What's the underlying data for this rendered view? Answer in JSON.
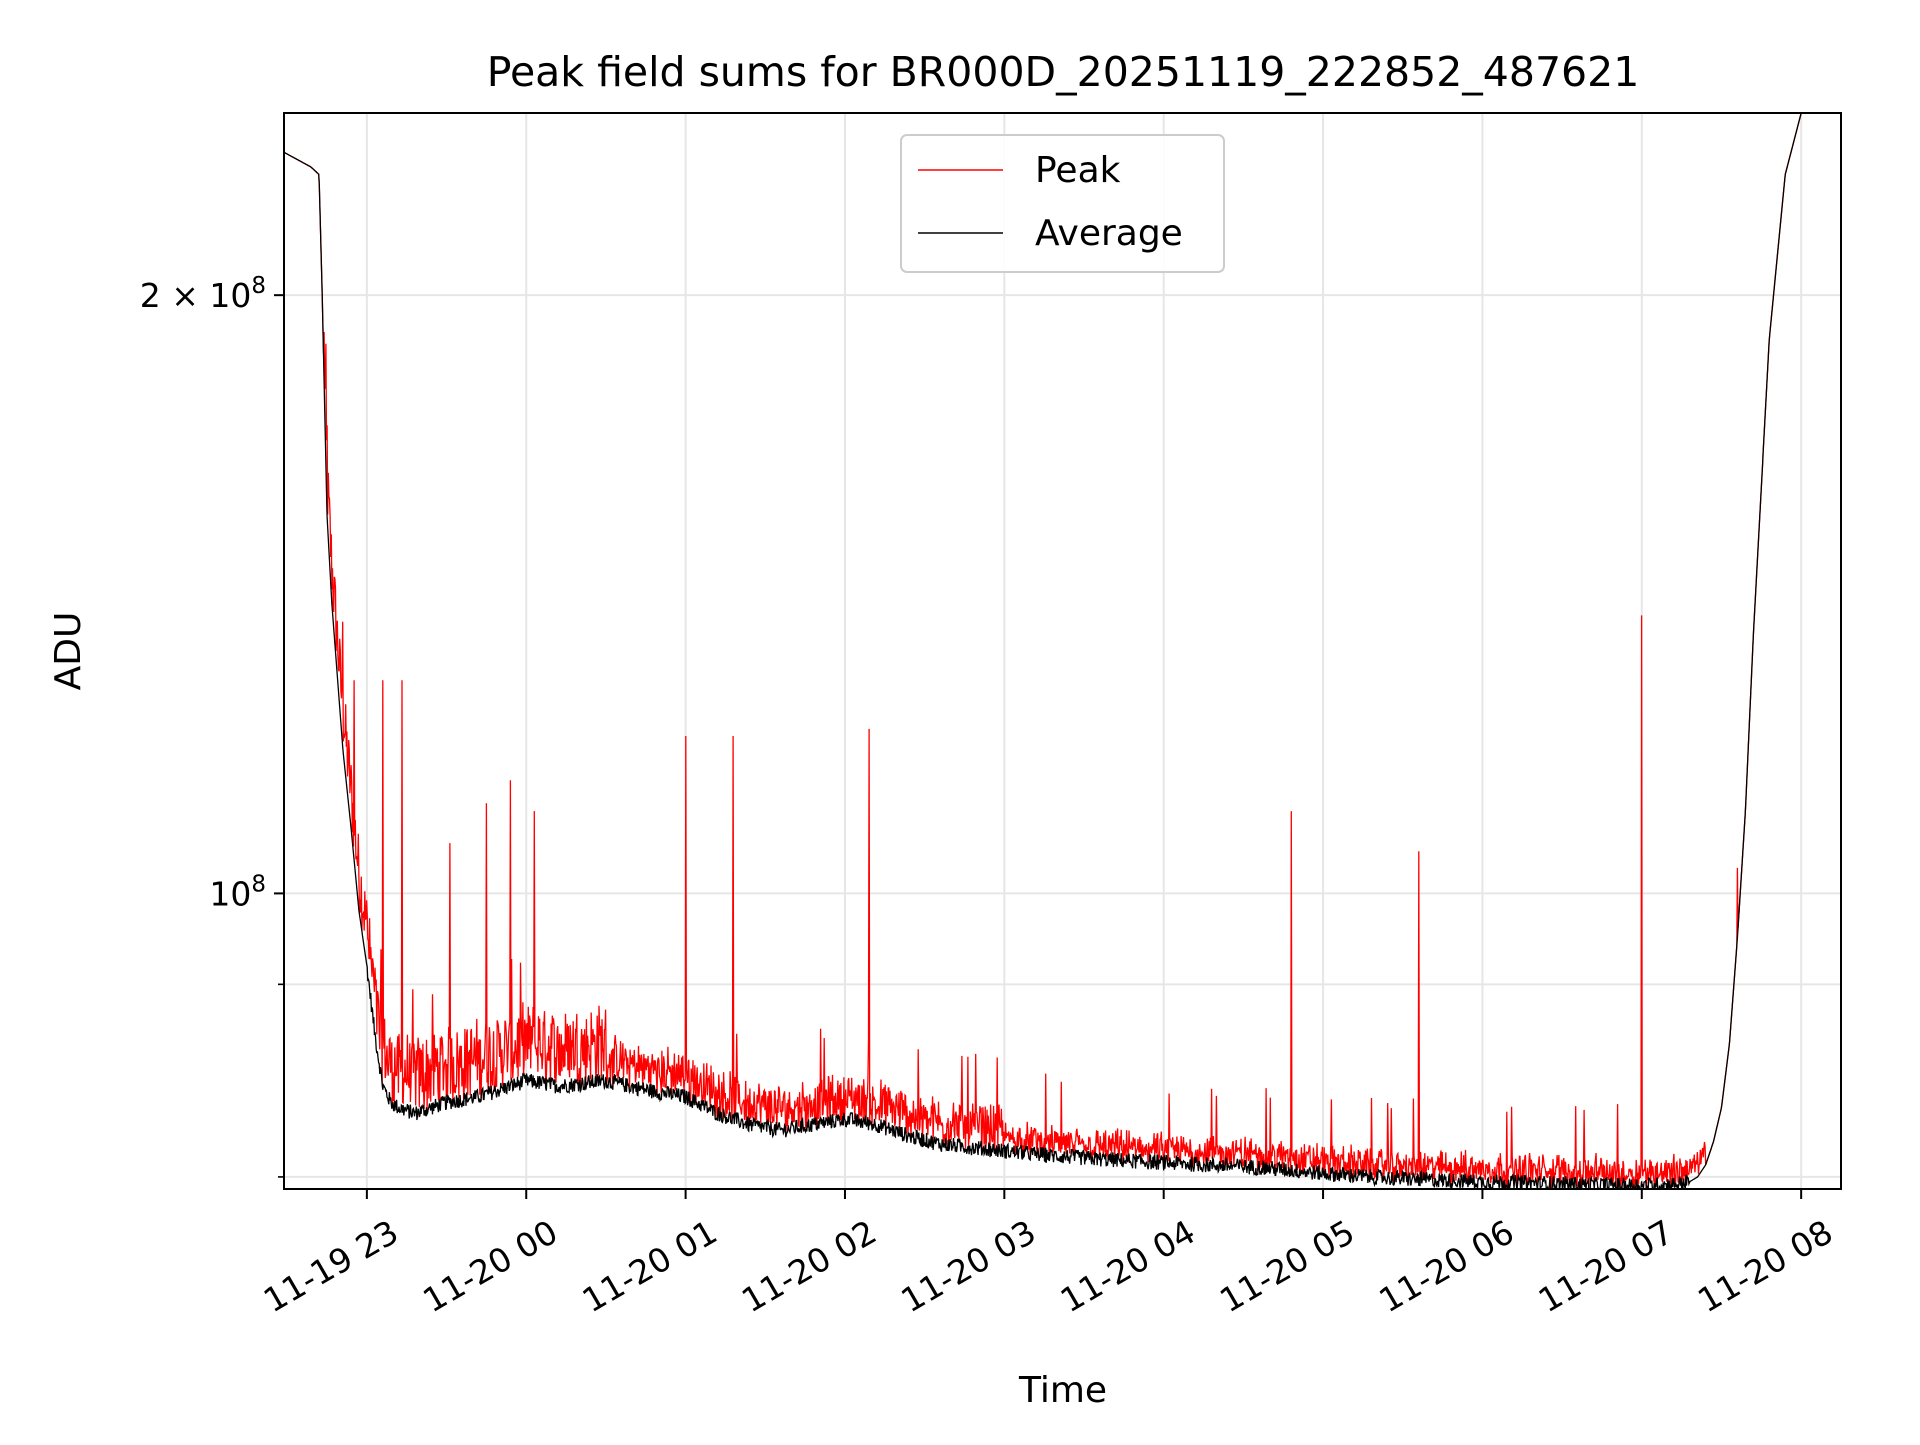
{
  "chart_data": {
    "type": "line",
    "title": "Peak field sums for BR000D_20251119_222852_487621",
    "xlabel": "Time",
    "ylabel": "ADU",
    "yscale": "log",
    "grid": true,
    "legend_position": "upper center",
    "xlim_hours": [
      -0.52,
      9.25
    ],
    "ylim": [
      71000000,
      247000000
    ],
    "x_ticks": [
      {
        "hour": 0,
        "label": "11-19 23"
      },
      {
        "hour": 1,
        "label": "11-20 00"
      },
      {
        "hour": 2,
        "label": "11-20 01"
      },
      {
        "hour": 3,
        "label": "11-20 02"
      },
      {
        "hour": 4,
        "label": "11-20 03"
      },
      {
        "hour": 5,
        "label": "11-20 04"
      },
      {
        "hour": 6,
        "label": "11-20 05"
      },
      {
        "hour": 7,
        "label": "11-20 06"
      },
      {
        "hour": 8,
        "label": "11-20 07"
      },
      {
        "hour": 9,
        "label": "11-20 08"
      }
    ],
    "y_ticks_major": [
      {
        "value": 100000000,
        "base": "10",
        "exp": "8",
        "coef": ""
      },
      {
        "value": 200000000,
        "base": "10",
        "exp": "8",
        "coef": "2 × "
      }
    ],
    "y_ticks_minor": [
      72000000,
      90000000
    ],
    "series": [
      {
        "name": "Average",
        "color": "#000000",
        "x_hours": [
          -0.52,
          -0.35,
          -0.3,
          -0.28,
          -0.25,
          -0.22,
          -0.15,
          -0.1,
          -0.05,
          0,
          0.05,
          0.1,
          0.15,
          0.2,
          0.3,
          0.5,
          0.7,
          0.9,
          1.0,
          1.2,
          1.5,
          1.8,
          2.0,
          2.2,
          2.4,
          2.6,
          2.8,
          3.0,
          3.2,
          3.4,
          3.6,
          3.8,
          4.0,
          4.3,
          4.6,
          5.0,
          5.3,
          5.6,
          6.0,
          6.3,
          6.6,
          7.0,
          7.3,
          7.6,
          7.9,
          8.0,
          8.2,
          8.3,
          8.35,
          8.4,
          8.45,
          8.5,
          8.55,
          8.6,
          8.65,
          8.7,
          8.8,
          8.9,
          9.0,
          9.25
        ],
        "values": [
          236000000,
          232000000,
          230000000,
          200000000,
          155000000,
          140000000,
          118000000,
          108000000,
          98000000,
          92000000,
          85000000,
          80000000,
          78500000,
          78000000,
          77500000,
          78500000,
          79000000,
          80000000,
          80500000,
          80000000,
          80500000,
          79500000,
          79000000,
          77500000,
          76500000,
          76000000,
          76500000,
          77000000,
          76500000,
          75500000,
          74800000,
          74500000,
          74200000,
          73800000,
          73500000,
          73200000,
          73000000,
          72800000,
          72300000,
          72000000,
          71800000,
          71600000,
          71500000,
          71400000,
          71300000,
          71300000,
          71400000,
          71600000,
          72000000,
          73000000,
          75000000,
          78000000,
          84000000,
          95000000,
          110000000,
          135000000,
          190000000,
          230000000,
          247000000,
          247000000
        ]
      },
      {
        "name": "Peak",
        "color": "#ff0000",
        "spikes": [
          {
            "hour": -0.25,
            "value": 172000000
          },
          {
            "hour": -0.15,
            "value": 137000000
          },
          {
            "hour": -0.08,
            "value": 128000000
          },
          {
            "hour": 0.1,
            "value": 128000000
          },
          {
            "hour": 0.22,
            "value": 128000000
          },
          {
            "hour": 0.52,
            "value": 106000000
          },
          {
            "hour": 0.75,
            "value": 111000000
          },
          {
            "hour": 0.9,
            "value": 114000000
          },
          {
            "hour": 1.05,
            "value": 110000000
          },
          {
            "hour": 2.0,
            "value": 120000000
          },
          {
            "hour": 2.3,
            "value": 120000000
          },
          {
            "hour": 3.15,
            "value": 121000000
          },
          {
            "hour": 5.8,
            "value": 110000000
          },
          {
            "hour": 6.6,
            "value": 105000000
          },
          {
            "hour": 8.0,
            "value": 138000000
          },
          {
            "hour": 8.6,
            "value": 103000000
          }
        ]
      }
    ]
  }
}
